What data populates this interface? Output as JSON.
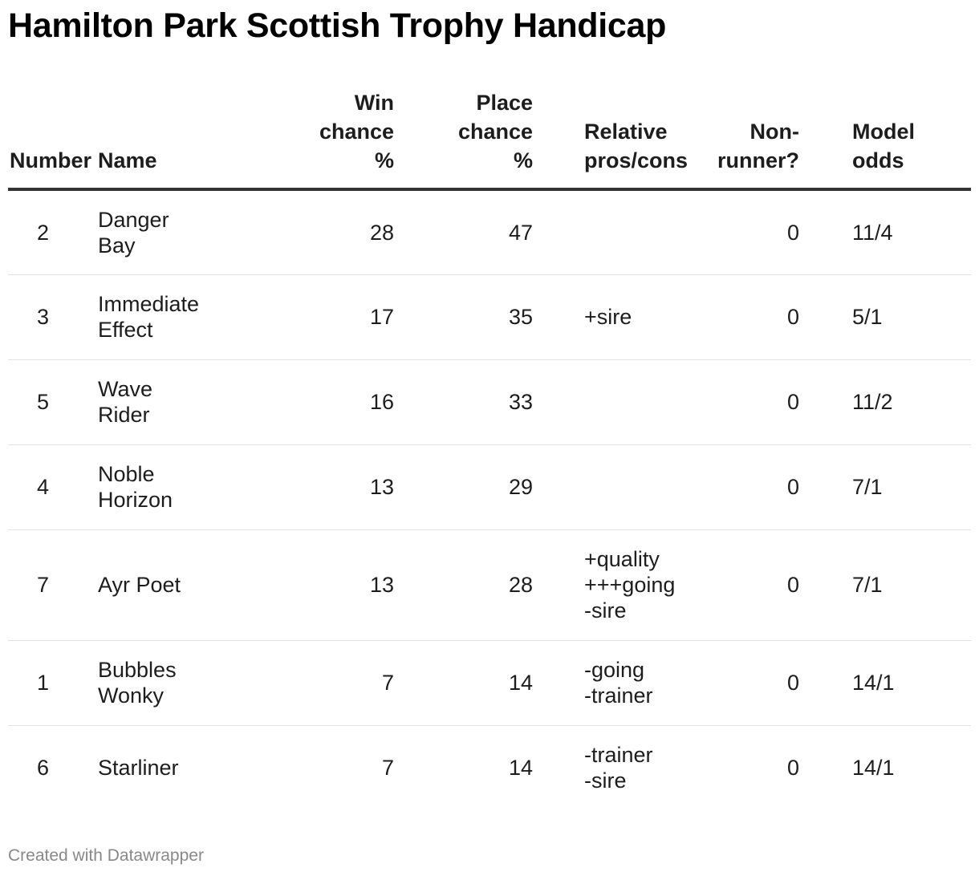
{
  "chart_data": {
    "type": "table",
    "title": "Hamilton Park Scottish Trophy Handicap",
    "columns": [
      {
        "key": "number",
        "lines": [
          "Number"
        ],
        "align": "right"
      },
      {
        "key": "name",
        "lines": [
          "Name"
        ],
        "align": "left"
      },
      {
        "key": "win",
        "lines": [
          "Win",
          "chance",
          "%"
        ],
        "align": "right"
      },
      {
        "key": "place",
        "lines": [
          "Place",
          "chance",
          "%"
        ],
        "align": "right"
      },
      {
        "key": "pros",
        "lines": [
          "Relative",
          "pros/cons"
        ],
        "align": "left"
      },
      {
        "key": "nonrunner",
        "lines": [
          "Non-",
          "runner?"
        ],
        "align": "right"
      },
      {
        "key": "odds",
        "lines": [
          "Model",
          "odds"
        ],
        "align": "left"
      }
    ],
    "rows": [
      {
        "number": 2,
        "name": [
          "Danger",
          "Bay"
        ],
        "win": 28,
        "place": 47,
        "pros": [],
        "nonrunner": 0,
        "odds": "11/4"
      },
      {
        "number": 3,
        "name": [
          "Immediate",
          "Effect"
        ],
        "win": 17,
        "place": 35,
        "pros": [
          "+sire"
        ],
        "nonrunner": 0,
        "odds": "5/1"
      },
      {
        "number": 5,
        "name": [
          "Wave",
          "Rider"
        ],
        "win": 16,
        "place": 33,
        "pros": [],
        "nonrunner": 0,
        "odds": "11/2"
      },
      {
        "number": 4,
        "name": [
          "Noble",
          "Horizon"
        ],
        "win": 13,
        "place": 29,
        "pros": [],
        "nonrunner": 0,
        "odds": "7/1"
      },
      {
        "number": 7,
        "name": [
          "Ayr Poet"
        ],
        "win": 13,
        "place": 28,
        "pros": [
          "+quality",
          "+++going",
          "-sire"
        ],
        "nonrunner": 0,
        "odds": "7/1"
      },
      {
        "number": 1,
        "name": [
          "Bubbles",
          "Wonky"
        ],
        "win": 7,
        "place": 14,
        "pros": [
          "-going",
          "-trainer"
        ],
        "nonrunner": 0,
        "odds": "14/1"
      },
      {
        "number": 6,
        "name": [
          "Starliner"
        ],
        "win": 7,
        "place": 14,
        "pros": [
          "-trainer",
          "-sire"
        ],
        "nonrunner": 0,
        "odds": "14/1"
      }
    ]
  },
  "footer": "Created with Datawrapper"
}
